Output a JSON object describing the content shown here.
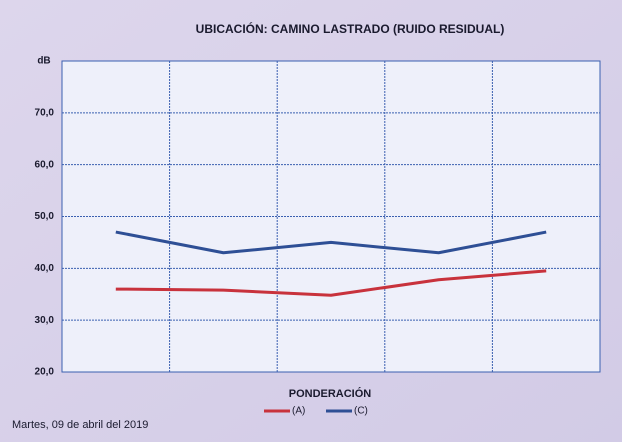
{
  "chart_data": {
    "type": "line",
    "title": "UBICACIÓN: CAMINO LASTRADO (RUIDO RESIDUAL)",
    "y_label": "dB",
    "x_label": "PONDERACIÓN",
    "annotation": "Martes, 09 de abril del 2019",
    "categories": [
      null,
      null,
      null,
      null,
      null
    ],
    "series": [
      {
        "name": "(A)",
        "color": "#c8323c",
        "values": [
          36,
          35.8,
          34.8,
          37.8,
          39.5
        ]
      },
      {
        "name": "(C)",
        "color": "#2e4f95",
        "values": [
          47,
          43,
          45,
          43,
          47
        ]
      }
    ],
    "ylim": [
      20,
      80
    ],
    "yticks": [
      {
        "value": 20,
        "label": "20,0"
      },
      {
        "value": 30,
        "label": "30,0"
      },
      {
        "value": 40,
        "label": "40,0"
      },
      {
        "value": 50,
        "label": "50,0"
      },
      {
        "value": 60,
        "label": "60,0"
      },
      {
        "value": 70,
        "label": "70,0"
      }
    ],
    "grid": true,
    "legend": "bottom"
  }
}
